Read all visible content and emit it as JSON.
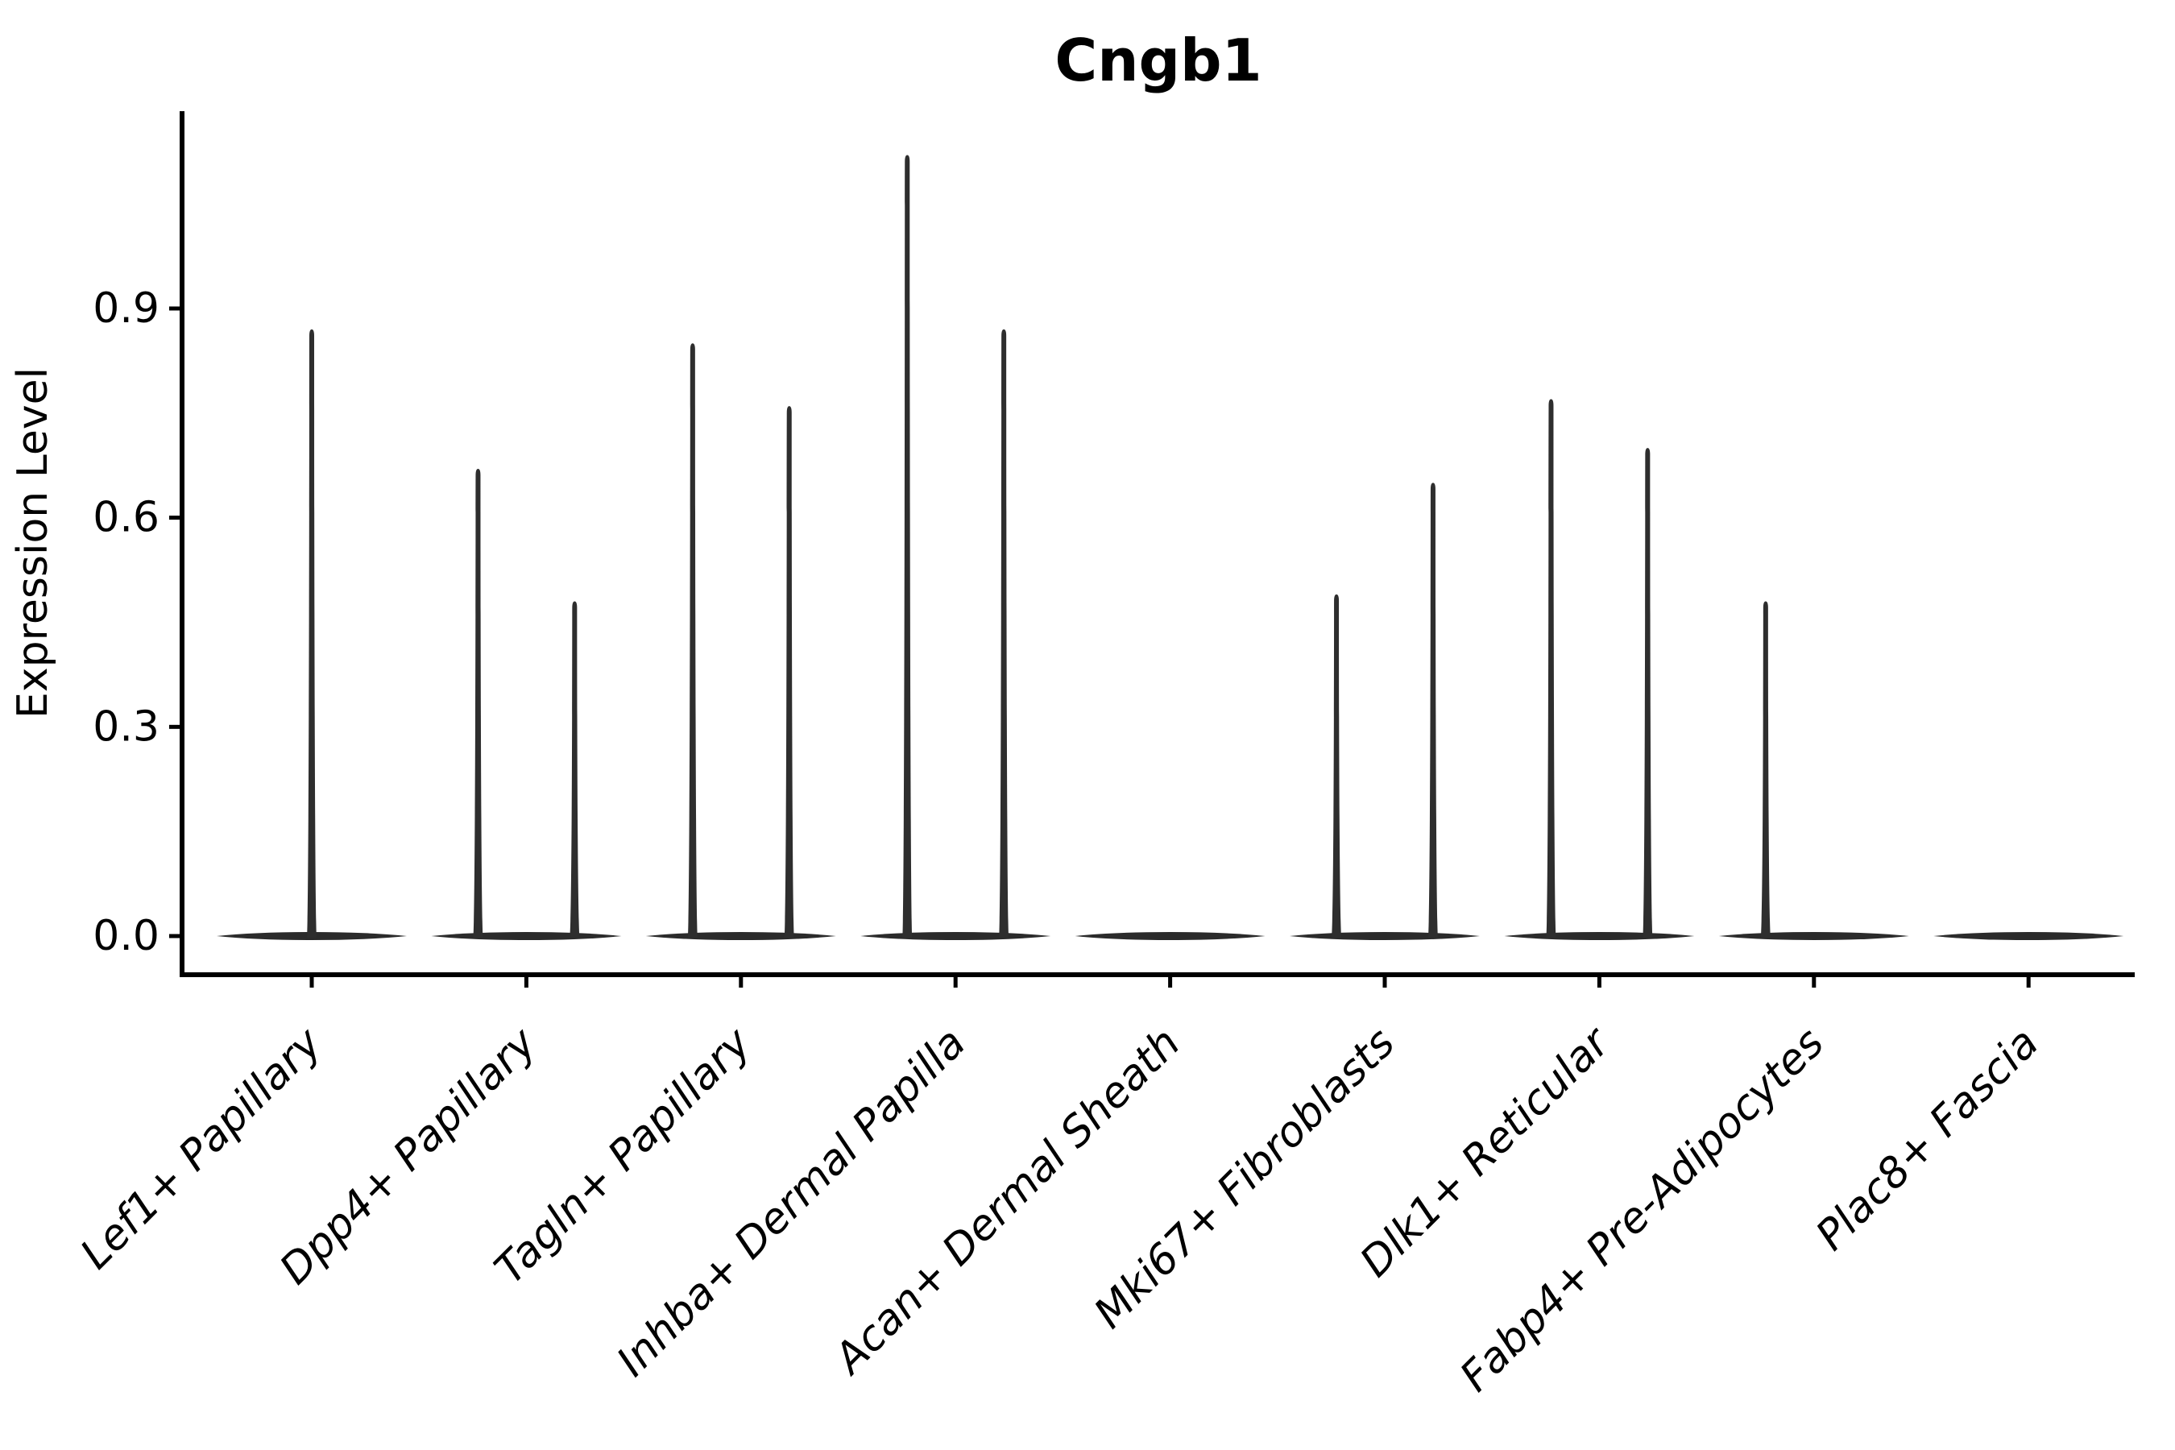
{
  "chart_data": {
    "type": "violin",
    "title": "Cngb1",
    "ylabel": "Expression Level",
    "xlabel": "",
    "y_ticks": [
      0.0,
      0.3,
      0.6,
      0.9
    ],
    "y_tick_labels": [
      "0.0",
      "0.3",
      "0.6",
      "0.9"
    ],
    "ylim": [
      0.0,
      1.18
    ],
    "grid": false,
    "legend_position": "none",
    "x_tick_rotation": 45,
    "x_label_style": "italic",
    "categories": [
      "Lef1+ Papillary",
      "Dpp4+ Papillary",
      "Tagln+ Papillary",
      "Inhba+ Dermal Papilla",
      "Acan+ Dermal Sheath",
      "Mki67+ Fibroblasts",
      "Dlk1+ Reticular",
      "Fabp4+ Pre-Adipocytes",
      "Plac8+ Fascia"
    ],
    "violins": [
      {
        "category": "Lef1+ Papillary",
        "body_at": 0.0,
        "spikes": [
          {
            "offset": 0,
            "max": 0.87
          }
        ]
      },
      {
        "category": "Dpp4+ Papillary",
        "body_at": 0.0,
        "spikes": [
          {
            "offset": -0.225,
            "max": 0.67
          },
          {
            "offset": 0.225,
            "max": 0.48
          }
        ]
      },
      {
        "category": "Tagln+ Papillary",
        "body_at": 0.0,
        "spikes": [
          {
            "offset": -0.225,
            "max": 0.85
          },
          {
            "offset": 0.225,
            "max": 0.76
          }
        ]
      },
      {
        "category": "Inhba+ Dermal Papilla",
        "body_at": 0.0,
        "spikes": [
          {
            "offset": -0.225,
            "max": 1.12
          },
          {
            "offset": 0.225,
            "max": 0.87
          }
        ]
      },
      {
        "category": "Acan+ Dermal Sheath",
        "body_at": 0.0,
        "spikes": []
      },
      {
        "category": "Mki67+ Fibroblasts",
        "body_at": 0.0,
        "spikes": [
          {
            "offset": -0.225,
            "max": 0.49
          },
          {
            "offset": 0.225,
            "max": 0.65
          }
        ]
      },
      {
        "category": "Dlk1+ Reticular",
        "body_at": 0.0,
        "spikes": [
          {
            "offset": -0.225,
            "max": 0.77
          },
          {
            "offset": 0.225,
            "max": 0.7
          }
        ]
      },
      {
        "category": "Fabp4+ Pre-Adipocytes",
        "body_at": 0.0,
        "spikes": [
          {
            "offset": -0.225,
            "max": 0.48
          }
        ]
      },
      {
        "category": "Plac8+ Fascia",
        "body_at": 0.0,
        "spikes": []
      }
    ],
    "colors": {
      "violin_fill": "#2b2b2b",
      "spike_fill": "#2e2e2e",
      "axis": "#000000",
      "text": "#000000"
    }
  }
}
